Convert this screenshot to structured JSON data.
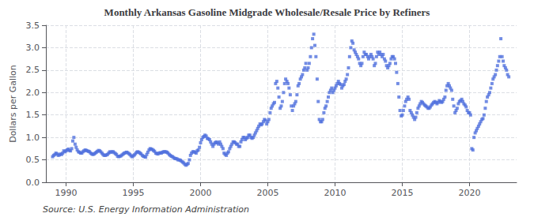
{
  "chart_data": {
    "type": "scatter",
    "title": "Monthly Arkansas Gasoline Midgrade Wholesale/Resale Price by Refiners",
    "ylabel": "Dollars per Gallon",
    "annotations": [
      "Source: U.S. Energy Information Administration"
    ],
    "marker": "square",
    "grid": true,
    "xlim": [
      1988.5,
      2023.5
    ],
    "xticks": [
      1990,
      1995,
      2000,
      2005,
      2010,
      2015,
      2020
    ],
    "ylim": [
      0.0,
      3.5
    ],
    "yticks": [
      {
        "value": 0,
        "label": "0.0"
      },
      0.5,
      {
        "value": 1,
        "label": "1.0"
      },
      1.5,
      {
        "value": 2,
        "label": "2.0"
      },
      2.5,
      {
        "value": 3,
        "label": "3.0"
      },
      3.5
    ],
    "x": [
      1989.0,
      1989.08,
      1989.17,
      1989.25,
      1989.33,
      1989.42,
      1989.5,
      1989.58,
      1989.67,
      1989.75,
      1989.83,
      1989.92,
      1990.0,
      1990.08,
      1990.17,
      1990.25,
      1990.33,
      1990.42,
      1990.5,
      1990.58,
      1990.67,
      1990.75,
      1990.83,
      1990.92,
      1991.0,
      1991.08,
      1991.17,
      1991.25,
      1991.33,
      1991.42,
      1991.5,
      1991.58,
      1991.67,
      1991.75,
      1991.83,
      1991.92,
      1992.0,
      1992.08,
      1992.17,
      1992.25,
      1992.33,
      1992.42,
      1992.5,
      1992.58,
      1992.67,
      1992.75,
      1992.83,
      1992.92,
      1993.0,
      1993.08,
      1993.17,
      1993.25,
      1993.33,
      1993.42,
      1993.5,
      1993.58,
      1993.67,
      1993.75,
      1993.83,
      1993.92,
      1994.0,
      1994.08,
      1994.17,
      1994.25,
      1994.33,
      1994.42,
      1994.5,
      1994.58,
      1994.67,
      1994.75,
      1994.83,
      1994.92,
      1995.0,
      1995.08,
      1995.17,
      1995.25,
      1995.33,
      1995.42,
      1995.5,
      1995.58,
      1995.67,
      1995.75,
      1995.83,
      1995.92,
      1996.0,
      1996.08,
      1996.17,
      1996.25,
      1996.33,
      1996.42,
      1996.5,
      1996.58,
      1996.67,
      1996.75,
      1996.83,
      1996.92,
      1997.0,
      1997.08,
      1997.17,
      1997.25,
      1997.33,
      1997.42,
      1997.5,
      1997.58,
      1997.67,
      1997.75,
      1997.83,
      1997.92,
      1998.0,
      1998.08,
      1998.17,
      1998.25,
      1998.33,
      1998.42,
      1998.5,
      1998.58,
      1998.67,
      1998.75,
      1998.83,
      1998.92,
      1999.0,
      1999.08,
      1999.17,
      1999.25,
      1999.33,
      1999.42,
      1999.5,
      1999.58,
      1999.67,
      1999.75,
      1999.83,
      1999.92,
      2000.0,
      2000.08,
      2000.17,
      2000.25,
      2000.33,
      2000.42,
      2000.5,
      2000.58,
      2000.67,
      2000.75,
      2000.83,
      2000.92,
      2001.0,
      2001.08,
      2001.17,
      2001.25,
      2001.33,
      2001.42,
      2001.5,
      2001.58,
      2001.67,
      2001.75,
      2001.83,
      2001.92,
      2002.0,
      2002.08,
      2002.17,
      2002.25,
      2002.33,
      2002.42,
      2002.5,
      2002.58,
      2002.67,
      2002.75,
      2002.83,
      2002.92,
      2003.0,
      2003.08,
      2003.17,
      2003.25,
      2003.33,
      2003.42,
      2003.5,
      2003.58,
      2003.67,
      2003.75,
      2003.83,
      2003.92,
      2004.0,
      2004.08,
      2004.17,
      2004.25,
      2004.33,
      2004.42,
      2004.5,
      2004.58,
      2004.67,
      2004.75,
      2004.83,
      2004.92,
      2005.0,
      2005.08,
      2005.17,
      2005.25,
      2005.33,
      2005.42,
      2005.5,
      2005.58,
      2005.67,
      2005.75,
      2005.83,
      2005.92,
      2006.0,
      2006.08,
      2006.17,
      2006.25,
      2006.33,
      2006.42,
      2006.5,
      2006.58,
      2006.67,
      2006.75,
      2006.83,
      2006.92,
      2007.0,
      2007.08,
      2007.17,
      2007.25,
      2007.33,
      2007.42,
      2007.5,
      2007.58,
      2007.67,
      2007.75,
      2007.83,
      2007.92,
      2008.0,
      2008.08,
      2008.17,
      2008.25,
      2008.33,
      2008.42,
      2008.5,
      2008.58,
      2008.67,
      2008.75,
      2008.83,
      2008.92,
      2009.0,
      2009.08,
      2009.17,
      2009.25,
      2009.33,
      2009.42,
      2009.5,
      2009.58,
      2009.67,
      2009.75,
      2009.83,
      2009.92,
      2010.0,
      2010.08,
      2010.17,
      2010.25,
      2010.33,
      2010.42,
      2010.5,
      2010.58,
      2010.67,
      2010.75,
      2010.83,
      2010.92,
      2011.0,
      2011.08,
      2011.17,
      2011.25,
      2011.33,
      2011.42,
      2011.5,
      2011.58,
      2011.67,
      2011.75,
      2011.83,
      2011.92,
      2012.0,
      2012.08,
      2012.17,
      2012.25,
      2012.33,
      2012.42,
      2012.5,
      2012.58,
      2012.67,
      2012.75,
      2012.83,
      2012.92,
      2013.0,
      2013.08,
      2013.17,
      2013.25,
      2013.33,
      2013.42,
      2013.5,
      2013.58,
      2013.67,
      2013.75,
      2013.83,
      2013.92,
      2014.0,
      2014.08,
      2014.17,
      2014.25,
      2014.33,
      2014.42,
      2014.5,
      2014.58,
      2014.67,
      2014.75,
      2014.83,
      2014.92,
      2015.0,
      2015.08,
      2015.17,
      2015.25,
      2015.33,
      2015.42,
      2015.5,
      2015.58,
      2015.67,
      2015.75,
      2015.83,
      2015.92,
      2016.0,
      2016.08,
      2016.17,
      2016.25,
      2016.33,
      2016.42,
      2016.5,
      2016.58,
      2016.67,
      2016.75,
      2016.83,
      2016.92,
      2017.0,
      2017.08,
      2017.17,
      2017.25,
      2017.33,
      2017.42,
      2017.5,
      2017.58,
      2017.67,
      2017.75,
      2017.83,
      2017.92,
      2018.0,
      2018.08,
      2018.17,
      2018.25,
      2018.33,
      2018.42,
      2018.5,
      2018.58,
      2018.67,
      2018.75,
      2018.83,
      2018.92,
      2019.0,
      2019.08,
      2019.17,
      2019.25,
      2019.33,
      2019.42,
      2019.5,
      2019.58,
      2019.67,
      2019.75,
      2019.83,
      2019.92,
      2020.0,
      2020.08,
      2020.17,
      2020.25,
      2020.33,
      2020.42,
      2020.5,
      2020.58,
      2020.67,
      2020.75,
      2020.83,
      2020.92,
      2021.0,
      2021.08,
      2021.17,
      2021.25,
      2021.33,
      2021.42,
      2021.5,
      2021.58,
      2021.67,
      2021.75,
      2021.83,
      2021.92,
      2022.0,
      2022.08,
      2022.17,
      2022.25,
      2022.33,
      2022.42,
      2022.5,
      2022.58,
      2022.67,
      2022.75,
      2022.83,
      2022.92
    ],
    "values": [
      0.57,
      0.6,
      0.62,
      0.65,
      0.63,
      0.6,
      0.61,
      0.63,
      0.62,
      0.65,
      0.7,
      0.68,
      0.7,
      0.72,
      0.74,
      0.71,
      0.7,
      0.75,
      0.92,
      1.0,
      0.85,
      0.78,
      0.72,
      0.68,
      0.67,
      0.65,
      0.65,
      0.68,
      0.7,
      0.72,
      0.71,
      0.7,
      0.69,
      0.68,
      0.65,
      0.63,
      0.62,
      0.63,
      0.65,
      0.67,
      0.69,
      0.71,
      0.7,
      0.68,
      0.65,
      0.62,
      0.6,
      0.6,
      0.61,
      0.62,
      0.65,
      0.68,
      0.67,
      0.68,
      0.68,
      0.66,
      0.64,
      0.62,
      0.58,
      0.57,
      0.58,
      0.59,
      0.61,
      0.63,
      0.65,
      0.66,
      0.67,
      0.66,
      0.64,
      0.62,
      0.59,
      0.57,
      0.59,
      0.61,
      0.64,
      0.67,
      0.68,
      0.67,
      0.65,
      0.63,
      0.6,
      0.58,
      0.57,
      0.56,
      0.62,
      0.67,
      0.72,
      0.75,
      0.74,
      0.73,
      0.71,
      0.69,
      0.65,
      0.64,
      0.63,
      0.65,
      0.66,
      0.65,
      0.67,
      0.68,
      0.68,
      0.68,
      0.67,
      0.65,
      0.62,
      0.6,
      0.58,
      0.57,
      0.55,
      0.53,
      0.53,
      0.52,
      0.5,
      0.5,
      0.49,
      0.47,
      0.45,
      0.43,
      0.4,
      0.38,
      0.4,
      0.42,
      0.5,
      0.6,
      0.65,
      0.68,
      0.68,
      0.67,
      0.65,
      0.7,
      0.72,
      0.78,
      0.88,
      0.95,
      1.0,
      1.02,
      1.05,
      1.03,
      0.98,
      0.97,
      0.95,
      0.9,
      0.85,
      0.8,
      0.85,
      0.88,
      0.9,
      0.88,
      0.85,
      0.9,
      0.85,
      0.8,
      0.75,
      0.65,
      0.62,
      0.6,
      0.65,
      0.68,
      0.75,
      0.8,
      0.85,
      0.9,
      0.9,
      0.88,
      0.85,
      0.85,
      0.8,
      0.8,
      0.9,
      0.95,
      1.0,
      1.0,
      0.95,
      0.98,
      1.0,
      1.05,
      1.05,
      1.0,
      0.98,
      1.0,
      1.05,
      1.1,
      1.15,
      1.2,
      1.25,
      1.3,
      1.28,
      1.3,
      1.35,
      1.4,
      1.38,
      1.3,
      1.35,
      1.4,
      1.55,
      1.65,
      1.7,
      1.75,
      1.78,
      2.2,
      2.25,
      2.1,
      1.9,
      1.65,
      1.7,
      1.8,
      2.0,
      2.2,
      2.3,
      2.25,
      2.2,
      2.1,
      1.95,
      1.7,
      1.6,
      1.7,
      1.75,
      1.8,
      1.95,
      2.15,
      2.2,
      2.3,
      2.35,
      2.4,
      2.5,
      2.55,
      2.65,
      2.5,
      2.55,
      2.65,
      2.8,
      3.0,
      3.2,
      3.3,
      3.05,
      2.8,
      2.3,
      1.8,
      1.4,
      1.35,
      1.35,
      1.4,
      1.55,
      1.65,
      1.7,
      1.8,
      1.9,
      2.0,
      2.05,
      2.1,
      2.0,
      2.05,
      2.1,
      2.15,
      2.2,
      2.25,
      2.2,
      2.18,
      2.1,
      2.15,
      2.18,
      2.25,
      2.3,
      2.4,
      2.55,
      2.8,
      3.0,
      3.15,
      3.1,
      2.95,
      2.9,
      2.85,
      2.8,
      2.75,
      2.65,
      2.6,
      2.65,
      2.8,
      2.9,
      2.85,
      2.85,
      2.8,
      2.75,
      2.8,
      2.85,
      2.8,
      2.75,
      2.6,
      2.65,
      2.8,
      2.9,
      2.85,
      2.9,
      2.85,
      2.8,
      2.85,
      2.75,
      2.7,
      2.6,
      2.55,
      2.6,
      2.65,
      2.75,
      2.8,
      2.8,
      2.75,
      2.65,
      2.45,
      2.2,
      1.9,
      1.6,
      1.48,
      1.5,
      1.6,
      1.7,
      1.8,
      1.85,
      1.9,
      1.85,
      1.6,
      1.55,
      1.5,
      1.45,
      1.4,
      1.45,
      1.55,
      1.65,
      1.7,
      1.75,
      1.8,
      1.78,
      1.75,
      1.72,
      1.7,
      1.68,
      1.65,
      1.65,
      1.68,
      1.72,
      1.75,
      1.78,
      1.8,
      1.78,
      1.75,
      1.78,
      1.82,
      1.8,
      1.78,
      1.8,
      1.85,
      1.9,
      2.05,
      2.15,
      2.2,
      2.15,
      2.1,
      2.05,
      1.85,
      1.7,
      1.55,
      1.6,
      1.65,
      1.75,
      1.8,
      1.82,
      1.85,
      1.8,
      1.75,
      1.72,
      1.68,
      1.6,
      1.55,
      1.55,
      1.5,
      0.75,
      0.72,
      1.0,
      1.1,
      1.15,
      1.2,
      1.25,
      1.3,
      1.35,
      1.4,
      1.42,
      1.5,
      1.65,
      1.8,
      1.9,
      1.95,
      2.0,
      2.1,
      2.2,
      2.3,
      2.35,
      2.4,
      2.5,
      2.6,
      2.7,
      2.8,
      3.2,
      2.8,
      2.7,
      2.6,
      2.55,
      2.5,
      2.4,
      2.35
    ]
  }
}
